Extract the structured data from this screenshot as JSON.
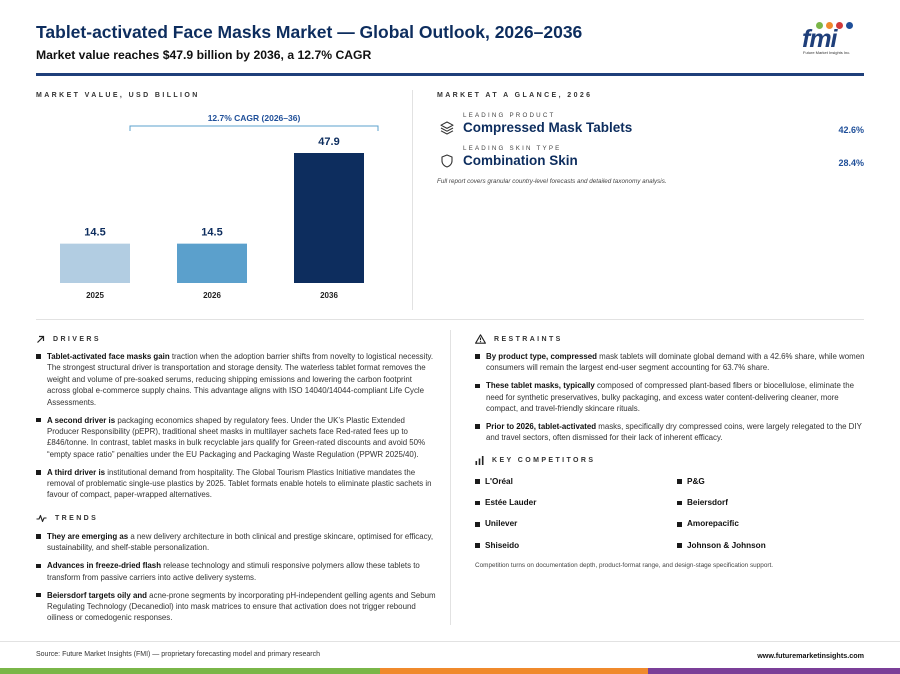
{
  "header": {
    "title": "Tablet-activated Face Masks Market — Global Outlook, 2026–2036",
    "subtitle": "Market value reaches $47.9 billion by 2036, a 12.7% CAGR",
    "logo_text": "fmi",
    "logo_subtext": "Future Market Insights Inc."
  },
  "chart_section": {
    "label": "MARKET VALUE, USD BILLION"
  },
  "chart_data": {
    "type": "bar",
    "categories": [
      "2025",
      "2026",
      "2036"
    ],
    "values": [
      14.5,
      14.5,
      47.9
    ],
    "value_labels": [
      "14.5",
      "14.5",
      "47.9"
    ],
    "annotation": "12.7% CAGR (2026–36)",
    "ylim": [
      0,
      47.9
    ],
    "grid": false,
    "legend": "none",
    "colors": [
      "#b2cde2",
      "#5ba0cc",
      "#0d2d5e"
    ]
  },
  "glance": {
    "label": "MARKET AT A GLANCE, 2026",
    "items": [
      {
        "label": "LEADING PRODUCT",
        "value": "Compressed Mask Tablets",
        "pct": "42.6%",
        "icon": "layers-icon"
      },
      {
        "label": "LEADING SKIN TYPE",
        "value": "Combination Skin",
        "pct": "28.4%",
        "icon": "shield-icon"
      }
    ],
    "note": "Full report covers granular country-level forecasts and detailed taxonomy analysis."
  },
  "drivers": {
    "label": "DRIVERS",
    "items": [
      {
        "lead": "Tablet-activated face masks gain",
        "text": " traction when the adoption barrier shifts from novelty to logistical necessity. The strongest structural driver is transportation and storage density. The waterless tablet format removes the weight and volume of pre-soaked serums, reducing shipping emissions and lowering the carbon footprint across global e-commerce supply chains. This advantage aligns with ISO 14040/14044-compliant Life Cycle Assessments."
      },
      {
        "lead": "A second driver is",
        "text": " packaging economics shaped by regulatory fees. Under the UK’s Plastic Extended Producer Responsibility (pEPR), traditional sheet masks in multilayer sachets face Red-rated fees up to £846/tonne. In contrast, tablet masks in bulk recyclable jars qualify for Green-rated discounts and avoid 50% “empty space ratio” penalties under the EU Packaging and Packaging Waste Regulation (PPWR 2025/40)."
      },
      {
        "lead": "A third driver is",
        "text": " institutional demand from hospitality. The Global Tourism Plastics Initiative mandates the removal of problematic single-use plastics by 2025. Tablet formats enable hotels to eliminate plastic sachets in favour of compact, paper-wrapped alternatives."
      }
    ]
  },
  "trends": {
    "label": "TRENDS",
    "items": [
      {
        "lead": "They are emerging as",
        "text": " a new delivery architecture in both clinical and prestige skincare, optimised for efficacy, sustainability, and shelf-stable personalization."
      },
      {
        "lead": "Advances in freeze-dried flash",
        "text": " release technology and stimuli responsive polymers allow these tablets to transform from passive carriers into active delivery systems."
      },
      {
        "lead": "Beiersdorf targets oily and",
        "text": " acne-prone segments by incorporating pH-independent gelling agents and Sebum Regulating Technology (Decanediol) into mask matrices to ensure that activation does not trigger rebound oiliness or comedogenic responses."
      }
    ]
  },
  "restraints": {
    "label": "RESTRAINTS",
    "items": [
      {
        "lead": "By product type, compressed",
        "text": " mask tablets will dominate global demand with a 42.6% share, while women consumers will remain the largest end-user segment accounting for 63.7% share."
      },
      {
        "lead": "These tablet masks, typically",
        "text": " composed of compressed plant-based fibers or biocellulose, eliminate the need for synthetic preservatives, bulky packaging, and excess water content-delivering cleaner, more compact, and travel-friendly skincare rituals."
      },
      {
        "lead": "Prior to 2026, tablet-activated",
        "text": " masks, specifically dry compressed coins, were largely relegated to the DIY and travel sectors, often dismissed for their lack of inherent efficacy."
      }
    ]
  },
  "competitors": {
    "label": "KEY COMPETITORS",
    "items": [
      "L'Oréal",
      "P&G",
      "Estée Lauder",
      "Beiersdorf",
      "Unilever",
      "Amorepacific",
      "Shiseido",
      "Johnson & Johnson"
    ],
    "note": "Competition turns on documentation depth, product-format range, and design-stage specification support."
  },
  "footer": {
    "source": "Source: Future Market Insights (FMI) — proprietary forecasting model and primary research",
    "url": "www.futuremarketinsights.com"
  },
  "colors": {
    "navy": "#0d2d5e",
    "accent_blue": "#1f4f99",
    "bottom_bar": [
      "#7ab648",
      "#f08a2c",
      "#7b3f98"
    ]
  }
}
